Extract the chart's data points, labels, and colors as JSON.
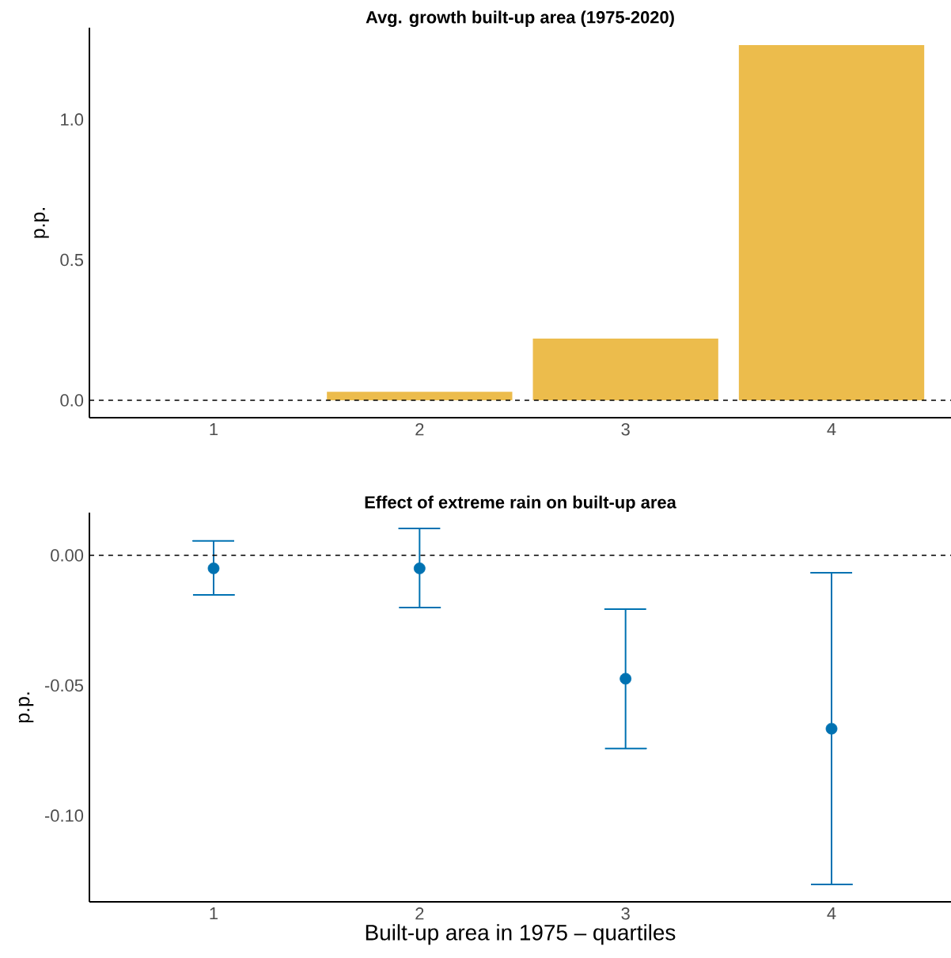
{
  "chart_data": [
    {
      "type": "bar",
      "title": "Avg. growth built-up area  (1975-2020)",
      "ylabel": "p.p.",
      "categories": [
        "1",
        "2",
        "3",
        "4"
      ],
      "values": [
        0,
        0.03,
        0.22,
        1.265
      ],
      "color": "#ecbc4c",
      "ylim": [
        -0.062,
        1.327
      ],
      "yticks": [
        {
          "value": 0,
          "label": "0.0"
        },
        {
          "value": 0.5,
          "label": "0.5"
        },
        {
          "value": 1,
          "label": "1.0"
        }
      ],
      "ref_lines": [
        {
          "axis": "y",
          "value": 0,
          "line_style": "dashed",
          "color": "#000000"
        }
      ],
      "grid": false
    },
    {
      "type": "scatter",
      "title": "Effect of extreme rain on built-up area",
      "ylabel": "p.p.",
      "xlabel": "Built-up area in 1975 – quartiles",
      "categories": [
        "1",
        "2",
        "3",
        "4"
      ],
      "values": [
        -0.005,
        -0.005,
        -0.0474,
        -0.0666
      ],
      "color": "#0072b2",
      "errors": [
        [
          -0.0152,
          0.0055
        ],
        [
          -0.0201,
          0.0103
        ],
        [
          -0.0742,
          -0.0207
        ],
        [
          -0.1264,
          -0.0067
        ]
      ],
      "marker": "circle",
      "ylim": [
        -0.1331,
        0.0164
      ],
      "yticks": [
        {
          "value": -0.1,
          "label": "-0.10"
        },
        {
          "value": -0.05,
          "label": "-0.05"
        },
        {
          "value": 0,
          "label": "0.00"
        }
      ],
      "ref_lines": [
        {
          "axis": "y",
          "value": 0,
          "line_style": "dashed",
          "color": "#000000"
        }
      ],
      "grid": false
    }
  ]
}
